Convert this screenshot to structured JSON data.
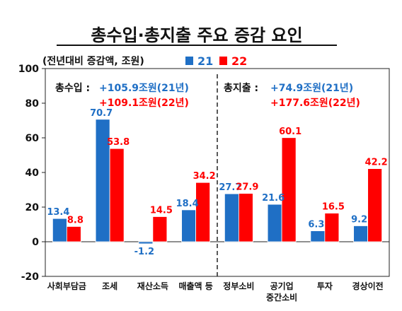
{
  "chart_data": {
    "type": "bar",
    "title": "총수입·총지출 주요 증감 요인",
    "subtitle": "(전년대비 증감액, 조원)",
    "categories": [
      [
        "사회부담금"
      ],
      [
        "조세"
      ],
      [
        "재산소득"
      ],
      [
        "매출액 등"
      ],
      [
        "정부소비"
      ],
      [
        "공기업",
        "중간소비"
      ],
      [
        "투자"
      ],
      [
        "경상이전"
      ]
    ],
    "series": [
      {
        "name": "21",
        "color": "#1f6fc5",
        "values": [
          13.4,
          70.7,
          -1.2,
          18.4,
          27.7,
          21.6,
          6.3,
          9.2
        ],
        "labels": [
          "13.4",
          "70.7",
          "-1.2",
          "18.4",
          "27.7",
          "21.6",
          "6.3",
          "9.2"
        ]
      },
      {
        "name": "22",
        "color": "#ff0000",
        "values": [
          8.8,
          53.8,
          14.5,
          34.2,
          27.9,
          60.1,
          16.5,
          42.2
        ],
        "labels": [
          "8.8",
          "53.8",
          "14.5",
          "34.2",
          "27.9",
          "60.1",
          "16.5",
          "42.2"
        ]
      }
    ],
    "ylim": [
      -20,
      100
    ],
    "yticks": [
      "100",
      "80",
      "60",
      "40",
      "20",
      "0",
      "-20"
    ],
    "ytick_values": [
      100,
      80,
      60,
      40,
      20,
      0,
      -20
    ],
    "divider_after_category": 4,
    "annotations": [
      {
        "label": "총수입 :",
        "line1": "+105.9조원(21년)",
        "line2": "+109.1조원(22년)"
      },
      {
        "label": "총지출 :",
        "line1": "+74.9조원(21년)",
        "line2": "+177.6조원(22년)"
      }
    ]
  }
}
